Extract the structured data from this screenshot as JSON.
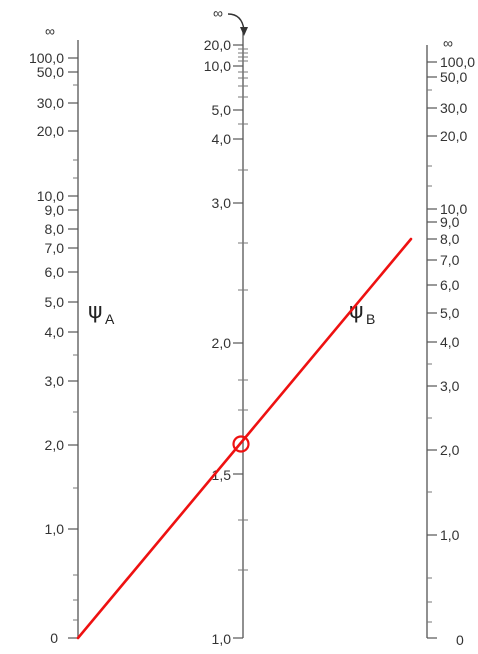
{
  "scales": {
    "psi_a": {
      "symbol": "ψ",
      "subscript": "A",
      "labels": [
        "∞",
        "100,0",
        "50,0",
        "30,0",
        "20,0",
        "10,0",
        "9,0",
        "8,0",
        "7,0",
        "6,0",
        "5,0",
        "4,0",
        "3,0",
        "2,0",
        "1,0",
        "0"
      ]
    },
    "k": {
      "labels": [
        "∞",
        "20,0",
        "10,0",
        "5,0",
        "4,0",
        "3,0",
        "2,0",
        "1,5",
        "1,0"
      ]
    },
    "psi_b": {
      "symbol": "ψ",
      "subscript": "B",
      "labels": [
        "∞",
        "100,0",
        "50,0",
        "30,0",
        "20,0",
        "10,0",
        "9,0",
        "8,0",
        "7,0",
        "6,0",
        "5,0",
        "4,0",
        "3,0",
        "2,0",
        "1,0",
        "0"
      ]
    }
  },
  "reading": {
    "psi_a": 0,
    "psi_b": 8.0,
    "k_result": 1.6
  },
  "colors": {
    "result_line": "#ee1111",
    "axis": "#555555",
    "text": "#333333"
  }
}
